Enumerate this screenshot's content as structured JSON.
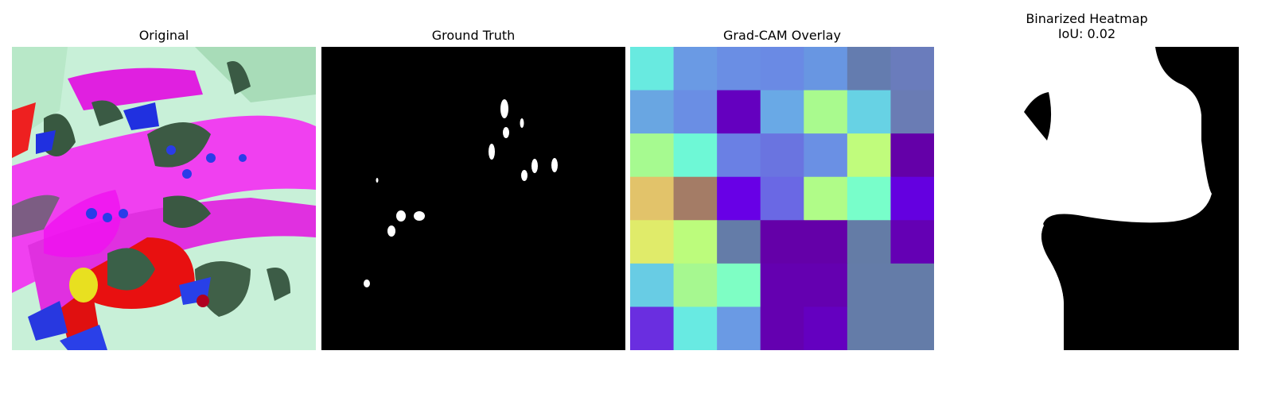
{
  "panels": [
    {
      "id": "original",
      "title": "Original"
    },
    {
      "id": "ground_truth",
      "title": "Ground Truth"
    },
    {
      "id": "gradcam_overlay",
      "title": "Grad-CAM Overlay"
    },
    {
      "id": "binarized_heatmap",
      "title": "Binarized Heatmap",
      "subtitle": "IoU: 0.02"
    }
  ],
  "gradcam_grid": {
    "rows": 7,
    "cols": 7,
    "cells": [
      [
        "#68eae0",
        "#6a9ae4",
        "#6a8ee4",
        "#6a8ae4",
        "#6896e2",
        "#647caf",
        "#6a7cbc"
      ],
      [
        "#69a6e2",
        "#6a8ee4",
        "#6400bf",
        "#69a9e6",
        "#a9fa8e",
        "#67d2e4",
        "#6a7cb4"
      ],
      [
        "#a6fa90",
        "#6ef8d6",
        "#6a80e4",
        "#6a74e0",
        "#6a90e4",
        "#c0fc7c",
        "#6400a8"
      ],
      [
        "#e2c36a",
        "#a47c66",
        "#6800e6",
        "#6a68e4",
        "#b0fc88",
        "#78feca",
        "#6400e0"
      ],
      [
        "#e0eb6a",
        "#bcfc7c",
        "#647ca8",
        "#6400a8",
        "#6400a8",
        "#647ca6",
        "#6400b4"
      ],
      [
        "#68cce4",
        "#a6f890",
        "#7efec4",
        "#6400b0",
        "#6400b0",
        "#647ca8",
        "#647ca8"
      ],
      [
        "#6a2ee0",
        "#68eae2",
        "#6a9ae4",
        "#6400b0",
        "#6400c0",
        "#647ca8",
        "#647ca8"
      ]
    ]
  }
}
